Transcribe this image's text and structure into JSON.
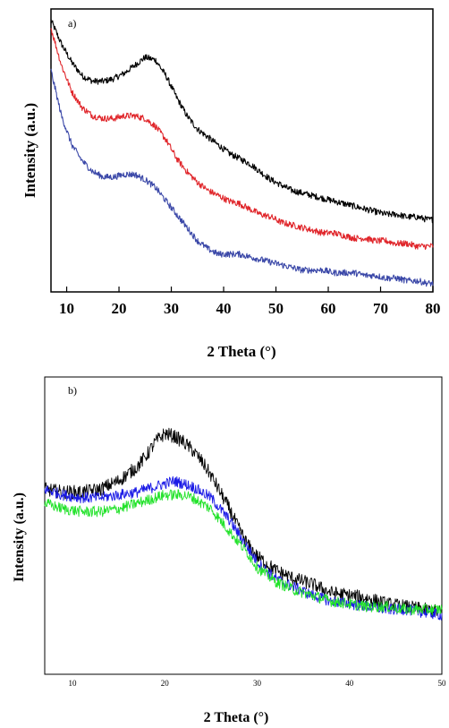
{
  "chart_data": [
    {
      "type": "line",
      "panel_label": "a)",
      "xlabel": "2 Theta (°)",
      "ylabel": "Intensity (a.u.)",
      "xlim": [
        7,
        80
      ],
      "xticks": [
        10,
        20,
        30,
        40,
        50,
        60,
        70,
        80
      ],
      "ytick_labels": false,
      "grid": false,
      "x": [
        7,
        9,
        11,
        13,
        15,
        17,
        19,
        21,
        23,
        25,
        27,
        29,
        31,
        33,
        35,
        37,
        39,
        41,
        43,
        45,
        47,
        49,
        51,
        53,
        55,
        57,
        59,
        61,
        63,
        65,
        67,
        69,
        71,
        73,
        75,
        77,
        79,
        80
      ],
      "series": [
        {
          "color": "#000000",
          "noise": 0.012,
          "values": [
            0.99,
            0.9,
            0.83,
            0.78,
            0.76,
            0.76,
            0.77,
            0.79,
            0.82,
            0.85,
            0.84,
            0.78,
            0.7,
            0.63,
            0.58,
            0.55,
            0.52,
            0.49,
            0.47,
            0.45,
            0.42,
            0.39,
            0.37,
            0.35,
            0.34,
            0.33,
            0.32,
            0.31,
            0.3,
            0.29,
            0.28,
            0.27,
            0.26,
            0.26,
            0.25,
            0.25,
            0.24,
            0.24
          ]
        },
        {
          "color": "#e0262b",
          "noise": 0.012,
          "values": [
            0.96,
            0.82,
            0.72,
            0.66,
            0.63,
            0.62,
            0.62,
            0.63,
            0.63,
            0.62,
            0.59,
            0.54,
            0.47,
            0.42,
            0.38,
            0.35,
            0.33,
            0.31,
            0.3,
            0.28,
            0.26,
            0.25,
            0.23,
            0.22,
            0.21,
            0.2,
            0.19,
            0.19,
            0.18,
            0.17,
            0.17,
            0.16,
            0.16,
            0.15,
            0.15,
            0.14,
            0.14,
            0.14
          ]
        },
        {
          "color": "#3b48a8",
          "noise": 0.012,
          "values": [
            0.8,
            0.63,
            0.52,
            0.46,
            0.42,
            0.4,
            0.4,
            0.41,
            0.41,
            0.39,
            0.36,
            0.31,
            0.26,
            0.21,
            0.16,
            0.13,
            0.11,
            0.11,
            0.11,
            0.1,
            0.09,
            0.08,
            0.07,
            0.06,
            0.05,
            0.05,
            0.05,
            0.04,
            0.04,
            0.04,
            0.03,
            0.03,
            0.02,
            0.02,
            0.01,
            0.01,
            0.0,
            0.0
          ]
        }
      ]
    },
    {
      "type": "line",
      "panel_label": "b)",
      "xlabel": "2 Theta (°)",
      "ylabel": "Intensity (a.u.)",
      "xlim": [
        7,
        50
      ],
      "xticks": [
        10,
        20,
        30,
        40,
        50
      ],
      "ytick_labels": false,
      "grid": false,
      "x": [
        7,
        9,
        11,
        13,
        15,
        17,
        18,
        19,
        20,
        21,
        22,
        23,
        24,
        25,
        26,
        27,
        28,
        29,
        30,
        32,
        34,
        36,
        38,
        40,
        42,
        44,
        46,
        48,
        50
      ],
      "series": [
        {
          "color": "#000000",
          "noise": 0.025,
          "values": [
            0.63,
            0.62,
            0.62,
            0.63,
            0.66,
            0.71,
            0.75,
            0.8,
            0.83,
            0.82,
            0.8,
            0.77,
            0.73,
            0.68,
            0.62,
            0.56,
            0.49,
            0.43,
            0.39,
            0.34,
            0.31,
            0.29,
            0.26,
            0.25,
            0.24,
            0.22,
            0.21,
            0.2,
            0.19
          ]
        },
        {
          "color": "#1a1ae6",
          "noise": 0.02,
          "values": [
            0.63,
            0.61,
            0.6,
            0.6,
            0.61,
            0.62,
            0.63,
            0.64,
            0.65,
            0.66,
            0.65,
            0.64,
            0.62,
            0.6,
            0.56,
            0.52,
            0.47,
            0.42,
            0.37,
            0.31,
            0.28,
            0.25,
            0.23,
            0.22,
            0.21,
            0.2,
            0.2,
            0.19,
            0.18
          ]
        },
        {
          "color": "#22e22a",
          "noise": 0.02,
          "values": [
            0.58,
            0.56,
            0.55,
            0.55,
            0.56,
            0.58,
            0.59,
            0.6,
            0.61,
            0.61,
            0.61,
            0.6,
            0.58,
            0.56,
            0.52,
            0.48,
            0.44,
            0.4,
            0.35,
            0.3,
            0.27,
            0.25,
            0.23,
            0.22,
            0.21,
            0.21,
            0.2,
            0.2,
            0.2
          ]
        }
      ]
    }
  ]
}
